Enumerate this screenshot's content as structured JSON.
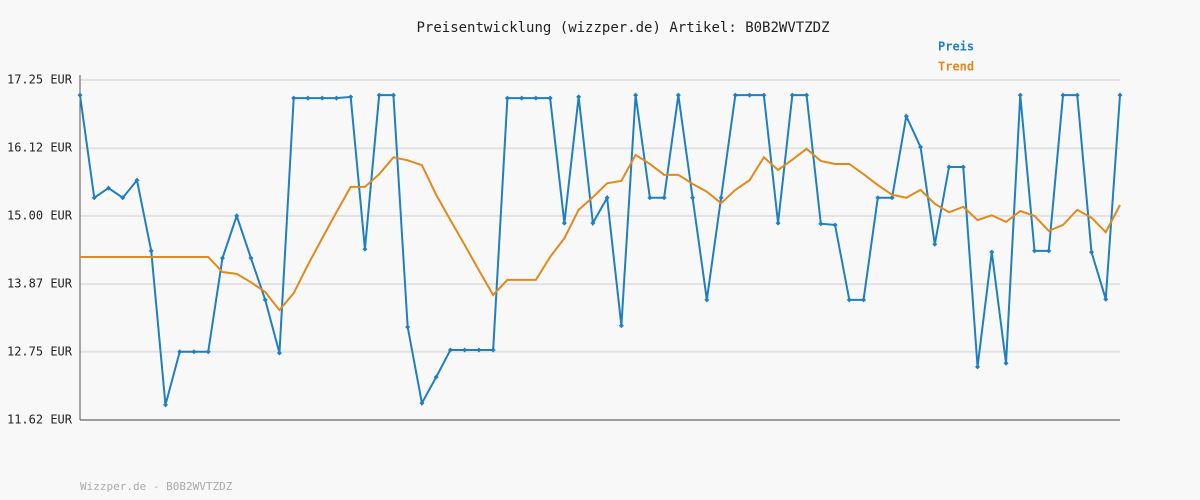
{
  "chart_data": {
    "type": "line",
    "title": "Preisentwicklung (wizzper.de) Artikel: B0B2WVTZDZ",
    "footer": "Wizzper.de - B0B2WVTZDZ",
    "categories": [
      null,
      null,
      null,
      null,
      null,
      null,
      null,
      null,
      null,
      null,
      null,
      null,
      null,
      null,
      null,
      null,
      null,
      null,
      null,
      null,
      null,
      null,
      null,
      null,
      null,
      null,
      null,
      null,
      null,
      null,
      null,
      null,
      null,
      null,
      null,
      null,
      null,
      null,
      null,
      null,
      null,
      null,
      null,
      null,
      null,
      null,
      null,
      null,
      null,
      null,
      null,
      null,
      null,
      null,
      null,
      null,
      null,
      null,
      null,
      null,
      null,
      null,
      null,
      null,
      null,
      null,
      null,
      null,
      null,
      null,
      null,
      null,
      null,
      null
    ],
    "series": [
      {
        "name": "Preis",
        "color": "#1f7fc0",
        "markers": true,
        "values": [
          17.0,
          15.3,
          15.46,
          15.3,
          15.59,
          14.42,
          11.87,
          12.75,
          12.75,
          12.75,
          14.3,
          15.0,
          14.3,
          13.61,
          12.73,
          16.95,
          16.95,
          16.95,
          16.95,
          16.97,
          14.45,
          17.0,
          17.0,
          13.16,
          11.9,
          12.33,
          12.78,
          12.78,
          12.78,
          12.78,
          16.95,
          16.95,
          16.95,
          16.95,
          14.88,
          16.97,
          14.88,
          15.3,
          13.18,
          17.0,
          15.3,
          15.3,
          17.0,
          15.3,
          13.61,
          15.3,
          17.0,
          17.0,
          17.0,
          14.88,
          17.0,
          17.0,
          14.87,
          14.85,
          13.61,
          13.61,
          15.3,
          15.3,
          16.65,
          16.14,
          14.53,
          15.81,
          15.81,
          12.5,
          14.4,
          12.56,
          17.0,
          14.42,
          14.42,
          17.0,
          17.0,
          14.4,
          13.62,
          17.0
        ]
      },
      {
        "name": "Trend",
        "color": "#e08a1e",
        "markers": false,
        "values": [
          14.32,
          14.32,
          14.32,
          14.32,
          14.32,
          14.32,
          14.32,
          14.32,
          14.32,
          14.32,
          14.07,
          14.04,
          13.9,
          13.74,
          13.44,
          13.72,
          14.19,
          14.63,
          15.06,
          15.48,
          15.48,
          15.69,
          15.97,
          15.92,
          15.84,
          15.35,
          14.93,
          14.52,
          14.1,
          13.69,
          13.94,
          13.94,
          13.94,
          14.32,
          14.63,
          15.1,
          15.31,
          15.54,
          15.58,
          16.01,
          15.86,
          15.68,
          15.68,
          15.53,
          15.4,
          15.21,
          15.43,
          15.59,
          15.97,
          15.76,
          15.93,
          16.11,
          15.91,
          15.86,
          15.86,
          15.69,
          15.51,
          15.35,
          15.3,
          15.43,
          15.2,
          15.06,
          15.15,
          14.93,
          15.01,
          14.9,
          15.08,
          15.0,
          14.75,
          14.85,
          15.1,
          14.97,
          14.73,
          15.18
        ]
      }
    ],
    "ylim": [
      11.62,
      17.25
    ],
    "yticks": [
      {
        "value": 11.62,
        "label": "11.62 EUR"
      },
      {
        "value": 12.75,
        "label": "12.75 EUR"
      },
      {
        "value": 13.87,
        "label": "13.87 EUR"
      },
      {
        "value": 15.0,
        "label": "15.00 EUR"
      },
      {
        "value": 16.12,
        "label": "16.12 EUR"
      },
      {
        "value": 17.25,
        "label": "17.25 EUR"
      }
    ],
    "grid": true,
    "legend": "top-right"
  }
}
